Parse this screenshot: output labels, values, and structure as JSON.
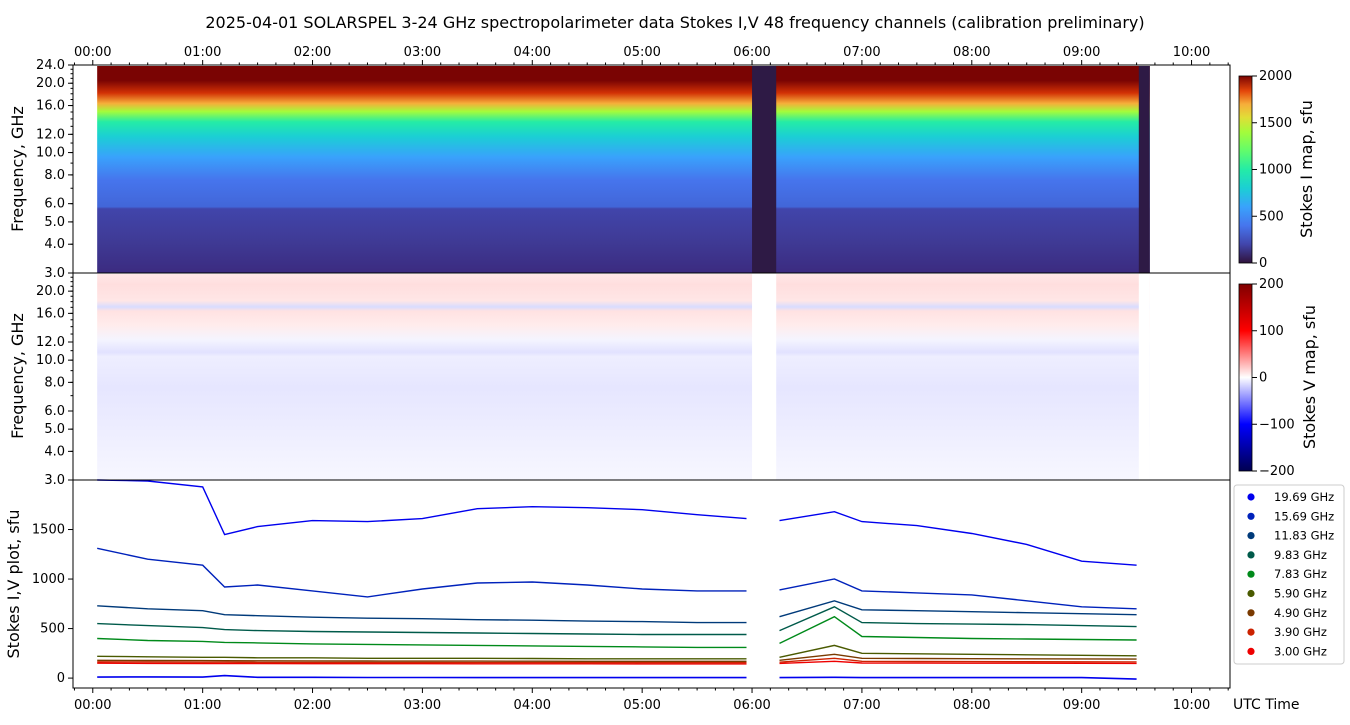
{
  "title": "2025-04-01  SOLARSPEL  3-24 GHz spectropolarimeter data   Stokes I,V   48 frequency channels   (calibration preliminary)",
  "time_axis": {
    "ticks": [
      "00:00",
      "01:00",
      "02:00",
      "03:00",
      "04:00",
      "05:00",
      "06:00",
      "07:00",
      "08:00",
      "09:00",
      "10:00"
    ],
    "label": "UTC Time",
    "range_hours": [
      -0.18,
      10.35
    ],
    "data_range_hours": [
      0.04,
      9.62
    ],
    "gap_hours": [
      [
        6.0,
        6.22
      ],
      [
        9.52,
        9.62
      ]
    ]
  },
  "freq_ticks": [
    "3.0",
    "4.0",
    "5.0",
    "6.0",
    "8.0",
    "10.0",
    "12.0",
    "16.0",
    "20.0",
    "24.0"
  ],
  "freq_ticks_v": [
    "3.0",
    "4.0",
    "5.0",
    "6.0",
    "8.0",
    "10.0",
    "12.0",
    "16.0",
    "20.0"
  ],
  "panels": {
    "stokes_i_map": {
      "ylabel": "Frequency, GHz",
      "colorbar_label": "Stokes I map, sfu",
      "colorbar_ticks": [
        "0",
        "500",
        "1000",
        "1500",
        "2000"
      ],
      "crange": [
        0,
        2000
      ]
    },
    "stokes_v_map": {
      "ylabel": "Frequency, GHz",
      "colorbar_label": "Stokes V map, sfu",
      "colorbar_ticks": [
        "−200",
        "−100",
        "0",
        "100",
        "200"
      ],
      "crange": [
        -200,
        200
      ]
    },
    "stokes_plot": {
      "ylabel": "Stokes I,V plot, sfu",
      "yticks": [
        "0",
        "500",
        "1000",
        "1500"
      ],
      "ylim": [
        -100,
        2000
      ]
    }
  },
  "chart_data": {
    "type": "line",
    "title": "2025-04-01  SOLARSPEL  3-24 GHz spectropolarimeter data   Stokes I,V   48 frequency channels   (calibration preliminary)",
    "xlabel": "UTC Time",
    "ylabel": "Stokes I,V plot, sfu",
    "ylim": [
      -100,
      2000
    ],
    "x": [
      0.04,
      0.5,
      1.0,
      1.2,
      1.5,
      2.0,
      2.5,
      3.0,
      3.5,
      4.0,
      4.5,
      5.0,
      5.5,
      5.95,
      6.25,
      6.75,
      7.0,
      7.5,
      8.0,
      8.5,
      9.0,
      9.5
    ],
    "series": [
      {
        "name": "19.69 GHz",
        "color": "#0000ee",
        "values": [
          2010,
          1990,
          1930,
          1450,
          1530,
          1590,
          1580,
          1610,
          1710,
          1730,
          1720,
          1700,
          1650,
          1610,
          1590,
          1680,
          1580,
          1540,
          1460,
          1350,
          1180,
          1140
        ]
      },
      {
        "name": "15.69 GHz",
        "color": "#0022bb",
        "values": [
          1310,
          1200,
          1140,
          920,
          940,
          880,
          820,
          900,
          960,
          970,
          940,
          900,
          880,
          880,
          890,
          1000,
          880,
          860,
          840,
          780,
          720,
          700
        ]
      },
      {
        "name": "11.83 GHz",
        "color": "#003a7a",
        "values": [
          730,
          700,
          680,
          640,
          630,
          615,
          605,
          600,
          590,
          585,
          575,
          570,
          560,
          560,
          620,
          780,
          690,
          680,
          670,
          660,
          650,
          640
        ]
      },
      {
        "name": "9.83 GHz",
        "color": "#005a4a",
        "values": [
          550,
          530,
          510,
          490,
          480,
          470,
          465,
          460,
          455,
          450,
          445,
          440,
          440,
          440,
          480,
          720,
          560,
          550,
          545,
          540,
          530,
          520
        ]
      },
      {
        "name": "7.83 GHz",
        "color": "#008a1a",
        "values": [
          400,
          380,
          370,
          360,
          355,
          345,
          340,
          335,
          330,
          325,
          320,
          315,
          310,
          310,
          350,
          620,
          420,
          410,
          400,
          395,
          390,
          385
        ]
      },
      {
        "name": "5.90 GHz",
        "color": "#4a5a00",
        "values": [
          220,
          215,
          210,
          210,
          205,
          205,
          200,
          200,
          200,
          198,
          195,
          195,
          195,
          195,
          210,
          330,
          250,
          245,
          240,
          235,
          230,
          225
        ]
      },
      {
        "name": "4.90 GHz",
        "color": "#7a3a00",
        "values": [
          180,
          178,
          177,
          176,
          175,
          174,
          173,
          172,
          172,
          171,
          170,
          170,
          170,
          170,
          180,
          240,
          200,
          198,
          196,
          195,
          194,
          192
        ]
      },
      {
        "name": "3.90 GHz",
        "color": "#cc2200",
        "values": [
          165,
          162,
          160,
          160,
          158,
          158,
          157,
          157,
          156,
          156,
          155,
          155,
          155,
          155,
          160,
          200,
          170,
          168,
          167,
          166,
          165,
          164
        ]
      },
      {
        "name": "3.00 GHz",
        "color": "#ee0000",
        "values": [
          150,
          148,
          147,
          146,
          146,
          145,
          145,
          145,
          144,
          144,
          144,
          143,
          143,
          143,
          148,
          170,
          152,
          151,
          150,
          150,
          149,
          148
        ]
      }
    ],
    "v_series": [
      {
        "name": "Stokes V",
        "color": "#0000ee",
        "values": [
          10,
          12,
          10,
          25,
          8,
          8,
          6,
          6,
          5,
          5,
          5,
          5,
          5,
          5,
          5,
          8,
          5,
          5,
          5,
          5,
          5,
          -10
        ]
      }
    ],
    "legend": "outside-right"
  }
}
